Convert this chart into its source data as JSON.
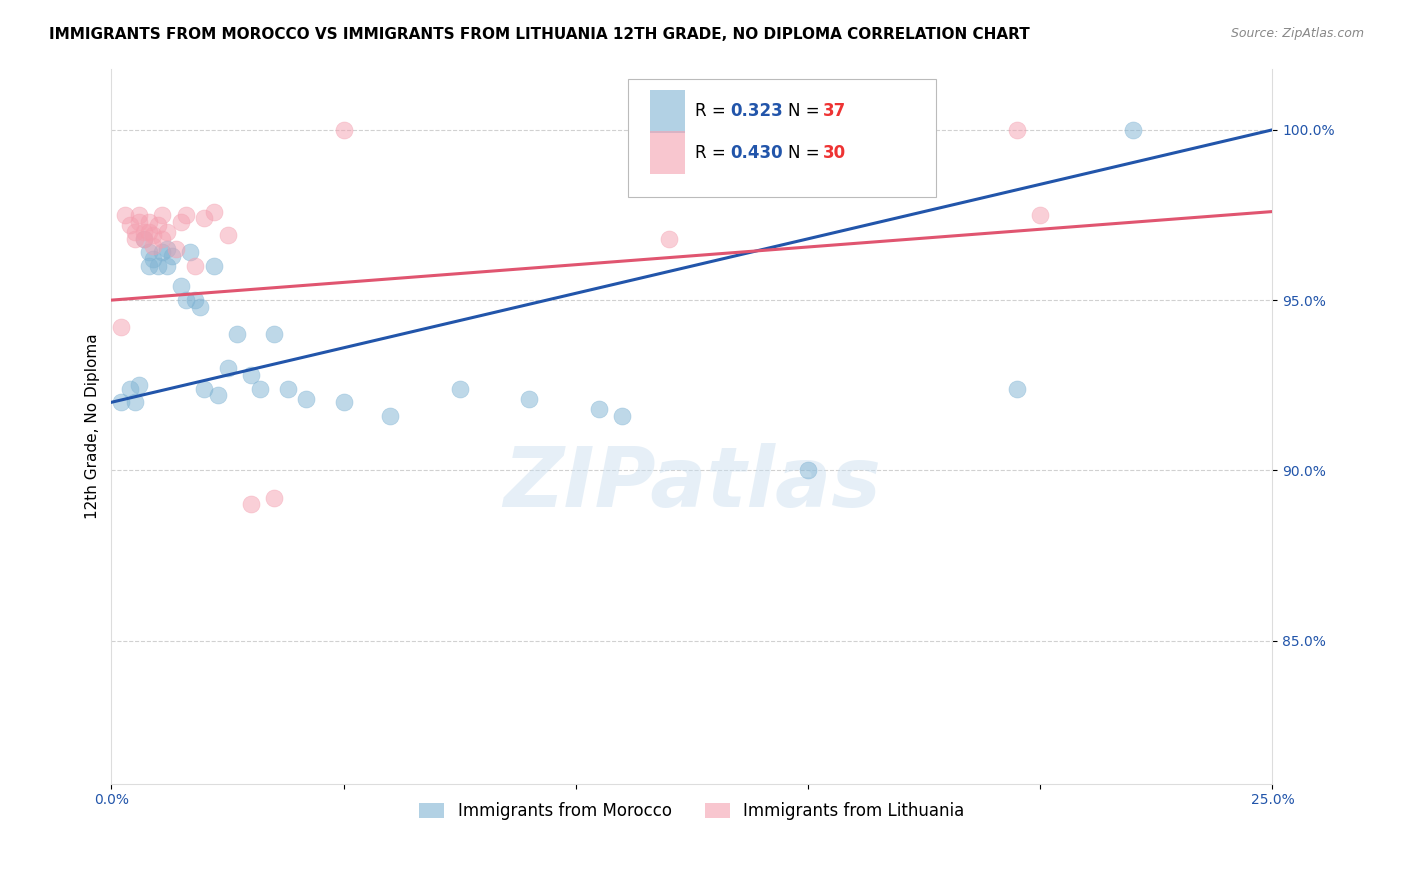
{
  "title": "IMMIGRANTS FROM MOROCCO VS IMMIGRANTS FROM LITHUANIA 12TH GRADE, NO DIPLOMA CORRELATION CHART",
  "source": "Source: ZipAtlas.com",
  "ylabel": "12th Grade, No Diploma",
  "x_min": 0.0,
  "x_max": 0.25,
  "y_min": 0.808,
  "y_max": 1.018,
  "morocco_R": 0.323,
  "morocco_N": 37,
  "lithuania_R": 0.43,
  "lithuania_N": 30,
  "morocco_color": "#7FB3D3",
  "lithuania_color": "#F4A0B0",
  "morocco_line_color": "#2255AA",
  "lithuania_line_color": "#E05570",
  "legend_morocco": "Immigrants from Morocco",
  "legend_lithuania": "Immigrants from Lithuania",
  "yticks": [
    0.85,
    0.9,
    0.95,
    1.0
  ],
  "ytick_labels": [
    "85.0%",
    "90.0%",
    "95.0%",
    "100.0%"
  ],
  "xticks": [
    0.0,
    0.05,
    0.1,
    0.15,
    0.2,
    0.25
  ],
  "background_color": "#FFFFFF",
  "watermark_text": "ZIPatlas",
  "title_fontsize": 11,
  "axis_label_fontsize": 11,
  "tick_fontsize": 10,
  "legend_fontsize": 12,
  "morocco_x": [
    0.002,
    0.004,
    0.005,
    0.006,
    0.007,
    0.008,
    0.008,
    0.009,
    0.01,
    0.011,
    0.012,
    0.012,
    0.013,
    0.015,
    0.016,
    0.017,
    0.018,
    0.019,
    0.02,
    0.022,
    0.023,
    0.025,
    0.027,
    0.03,
    0.032,
    0.035,
    0.038,
    0.042,
    0.05,
    0.06,
    0.075,
    0.09,
    0.105,
    0.11,
    0.15,
    0.195,
    0.22
  ],
  "morocco_y": [
    0.92,
    0.924,
    0.92,
    0.925,
    0.968,
    0.964,
    0.96,
    0.962,
    0.96,
    0.964,
    0.965,
    0.96,
    0.963,
    0.954,
    0.95,
    0.964,
    0.95,
    0.948,
    0.924,
    0.96,
    0.922,
    0.93,
    0.94,
    0.928,
    0.924,
    0.94,
    0.924,
    0.921,
    0.92,
    0.916,
    0.924,
    0.921,
    0.918,
    0.916,
    0.9,
    0.924,
    1.0
  ],
  "lithuania_x": [
    0.002,
    0.003,
    0.004,
    0.005,
    0.005,
    0.006,
    0.006,
    0.007,
    0.007,
    0.008,
    0.008,
    0.009,
    0.009,
    0.01,
    0.011,
    0.011,
    0.012,
    0.014,
    0.015,
    0.016,
    0.018,
    0.02,
    0.022,
    0.025,
    0.03,
    0.035,
    0.05,
    0.12,
    0.195,
    0.2
  ],
  "lithuania_y": [
    0.942,
    0.975,
    0.972,
    0.968,
    0.97,
    0.973,
    0.975,
    0.97,
    0.968,
    0.97,
    0.973,
    0.966,
    0.969,
    0.972,
    0.975,
    0.968,
    0.97,
    0.965,
    0.973,
    0.975,
    0.96,
    0.974,
    0.976,
    0.969,
    0.89,
    0.892,
    1.0,
    0.968,
    1.0,
    0.975
  ]
}
